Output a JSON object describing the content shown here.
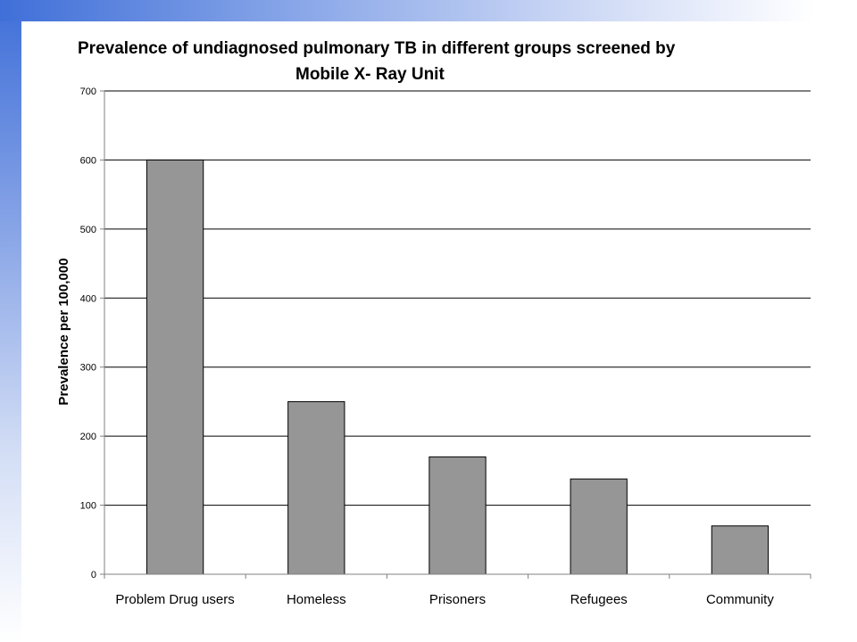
{
  "chart_data": {
    "type": "bar",
    "title_lines": [
      "Prevalence of undiagnosed pulmonary TB in different groups screened by",
      "Mobile X- Ray Unit"
    ],
    "xlabel": "",
    "ylabel": "Prevalence per 100,000",
    "categories": [
      "Problem Drug users",
      "Homeless",
      "Prisoners",
      "Refugees",
      "Community"
    ],
    "values": [
      600,
      250,
      170,
      138,
      70
    ],
    "ylim": [
      0,
      700
    ],
    "yticks": [
      0,
      100,
      200,
      300,
      400,
      500,
      600,
      700
    ],
    "grid": true,
    "legend": "none",
    "colors": {
      "bar_fill": "#969696",
      "bar_stroke": "#000000",
      "gridline": "#000000",
      "axis": "#808080",
      "plot_background": "#ffffff"
    }
  }
}
